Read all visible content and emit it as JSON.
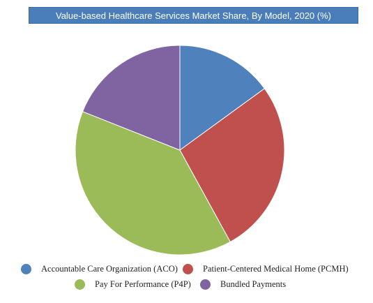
{
  "chart_data": {
    "type": "pie",
    "title": "Value-based Healthcare Services Market Share, By Model, 2020 (%)",
    "slices": [
      {
        "label": "Accountable Care Organization (ACO)",
        "value": 15,
        "color": "#4f81bd"
      },
      {
        "label": "Patient-Centered Medical Home (PCMH)",
        "value": 27,
        "color": "#c0504d"
      },
      {
        "label": "Pay For Performance (P4P)",
        "value": 39,
        "color": "#9bbb59"
      },
      {
        "label": "Bundled Payments",
        "value": 19,
        "color": "#8064a2"
      }
    ],
    "legend_position": "bottom"
  }
}
